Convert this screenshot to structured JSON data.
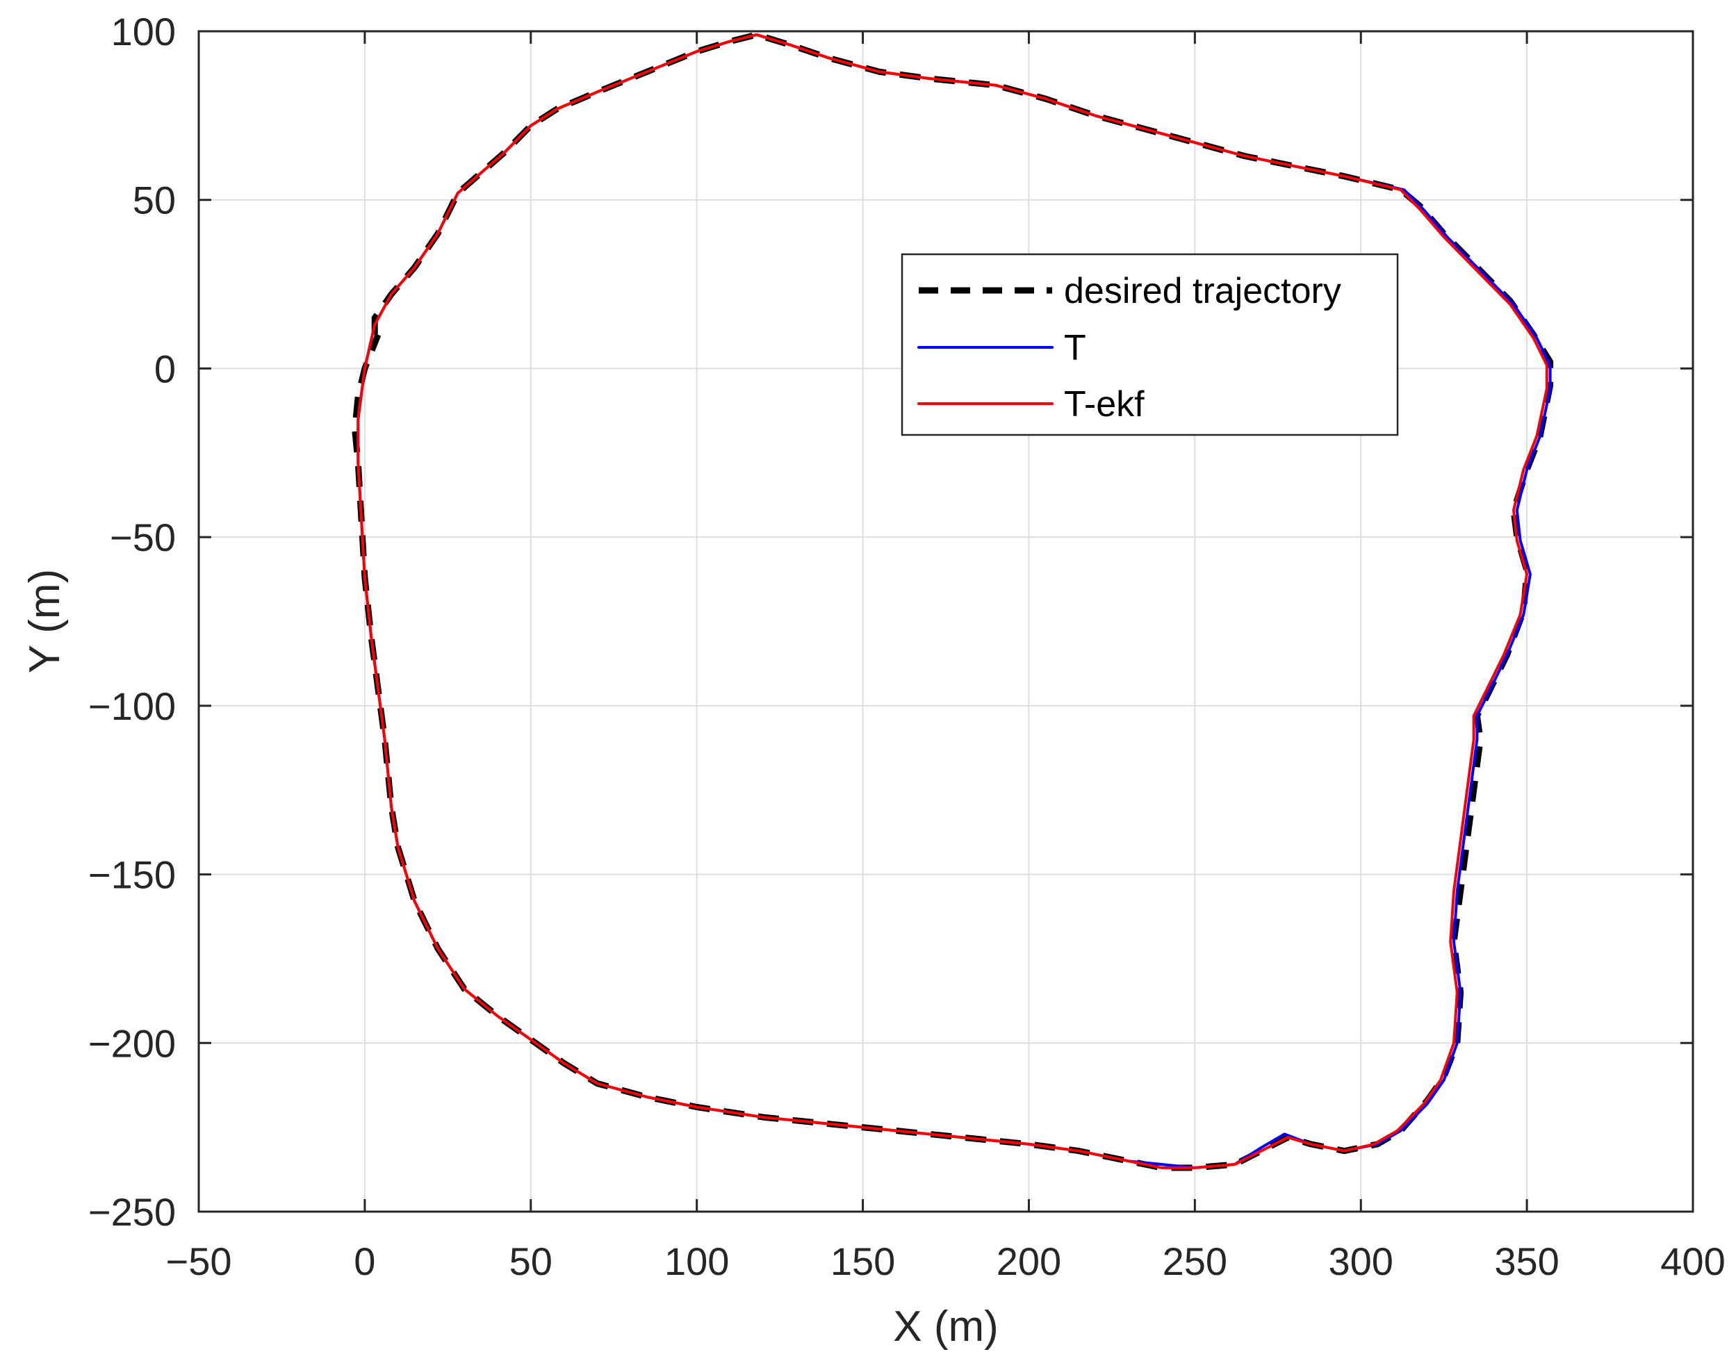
{
  "chart_data": {
    "type": "line",
    "xlabel": "X (m)",
    "ylabel": "Y (m)",
    "xlim": [
      -50,
      400
    ],
    "ylim": [
      -250,
      100
    ],
    "xticks": [
      -50,
      0,
      50,
      100,
      150,
      200,
      250,
      300,
      350,
      400
    ],
    "yticks": [
      -250,
      -200,
      -150,
      -100,
      -50,
      0,
      50,
      100
    ],
    "xtick_labels": [
      "−50",
      "0",
      "50",
      "100",
      "150",
      "200",
      "250",
      "300",
      "350",
      "400"
    ],
    "ytick_labels": [
      "−250",
      "−200",
      "−150",
      "−100",
      "−50",
      "0",
      "50",
      "100"
    ],
    "grid": true,
    "legend_position": "top-right",
    "series": [
      {
        "name": "desired trajectory",
        "color": "#000000",
        "style": "dashed",
        "points": [
          [
            3,
            10
          ],
          [
            3,
            15
          ],
          [
            8,
            22
          ],
          [
            15,
            30
          ],
          [
            22,
            40
          ],
          [
            28,
            52
          ],
          [
            35,
            58
          ],
          [
            42,
            64
          ],
          [
            50,
            72
          ],
          [
            58,
            77
          ],
          [
            70,
            82
          ],
          [
            85,
            88
          ],
          [
            100,
            94
          ],
          [
            110,
            97
          ],
          [
            118,
            99
          ],
          [
            128,
            96
          ],
          [
            140,
            92
          ],
          [
            155,
            88
          ],
          [
            170,
            86
          ],
          [
            190,
            84
          ],
          [
            205,
            80
          ],
          [
            220,
            75
          ],
          [
            235,
            71
          ],
          [
            250,
            67
          ],
          [
            265,
            63
          ],
          [
            280,
            60
          ],
          [
            295,
            57
          ],
          [
            312,
            53
          ],
          [
            318,
            48
          ],
          [
            325,
            40
          ],
          [
            335,
            30
          ],
          [
            345,
            20
          ],
          [
            352,
            10
          ],
          [
            357,
            2
          ],
          [
            357,
            -5
          ],
          [
            354,
            -20
          ],
          [
            350,
            -30
          ],
          [
            346,
            -42
          ],
          [
            347,
            -50
          ],
          [
            350,
            -60
          ],
          [
            349,
            -72
          ],
          [
            344,
            -85
          ],
          [
            339,
            -95
          ],
          [
            335,
            -103
          ],
          [
            336,
            -110
          ],
          [
            334,
            -125
          ],
          [
            332,
            -140
          ],
          [
            330,
            -155
          ],
          [
            328,
            -170
          ],
          [
            330,
            -185
          ],
          [
            329,
            -200
          ],
          [
            325,
            -210
          ],
          [
            320,
            -217
          ],
          [
            312,
            -226
          ],
          [
            305,
            -230
          ],
          [
            295,
            -232
          ],
          [
            285,
            -230
          ],
          [
            278,
            -228
          ],
          [
            270,
            -232
          ],
          [
            262,
            -236
          ],
          [
            250,
            -237
          ],
          [
            240,
            -237
          ],
          [
            230,
            -235
          ],
          [
            215,
            -232
          ],
          [
            200,
            -230
          ],
          [
            180,
            -228
          ],
          [
            160,
            -226
          ],
          [
            140,
            -224
          ],
          [
            120,
            -222
          ],
          [
            100,
            -219
          ],
          [
            85,
            -216
          ],
          [
            70,
            -212
          ],
          [
            60,
            -206
          ],
          [
            50,
            -199
          ],
          [
            40,
            -192
          ],
          [
            30,
            -184
          ],
          [
            22,
            -172
          ],
          [
            15,
            -158
          ],
          [
            10,
            -142
          ],
          [
            8,
            -130
          ],
          [
            6,
            -110
          ],
          [
            4,
            -95
          ],
          [
            2,
            -80
          ],
          [
            0,
            -62
          ],
          [
            -1,
            -45
          ],
          [
            -2,
            -28
          ],
          [
            -3,
            -18
          ],
          [
            -2,
            -8
          ],
          [
            0,
            0
          ],
          [
            2,
            5
          ],
          [
            4,
            10
          ]
        ]
      },
      {
        "name": "T",
        "color": "#0000ff",
        "style": "solid",
        "points": [
          [
            -2,
            -15
          ],
          [
            0,
            0
          ],
          [
            3,
            13
          ],
          [
            8,
            22
          ],
          [
            15,
            30
          ],
          [
            22,
            40
          ],
          [
            28,
            52
          ],
          [
            35,
            58
          ],
          [
            42,
            64
          ],
          [
            50,
            72
          ],
          [
            58,
            77
          ],
          [
            70,
            82
          ],
          [
            85,
            88
          ],
          [
            100,
            94
          ],
          [
            110,
            97
          ],
          [
            118,
            99
          ],
          [
            128,
            96
          ],
          [
            140,
            92
          ],
          [
            155,
            88
          ],
          [
            170,
            86
          ],
          [
            190,
            84
          ],
          [
            205,
            80
          ],
          [
            220,
            75
          ],
          [
            235,
            71
          ],
          [
            250,
            67
          ],
          [
            265,
            63
          ],
          [
            280,
            60
          ],
          [
            295,
            57
          ],
          [
            313,
            53
          ],
          [
            319,
            47
          ],
          [
            326,
            39
          ],
          [
            336,
            29
          ],
          [
            346,
            19
          ],
          [
            353,
            9
          ],
          [
            357,
            1
          ],
          [
            357,
            -6
          ],
          [
            354,
            -20
          ],
          [
            350,
            -30
          ],
          [
            347,
            -42
          ],
          [
            348,
            -51
          ],
          [
            351,
            -61
          ],
          [
            349,
            -73
          ],
          [
            344,
            -85
          ],
          [
            339,
            -95
          ],
          [
            335,
            -103
          ],
          [
            335,
            -110
          ],
          [
            333,
            -125
          ],
          [
            331,
            -140
          ],
          [
            329,
            -155
          ],
          [
            328,
            -170
          ],
          [
            330,
            -185
          ],
          [
            329,
            -200
          ],
          [
            325,
            -211
          ],
          [
            320,
            -218
          ],
          [
            312,
            -226
          ],
          [
            305,
            -230
          ],
          [
            295,
            -232
          ],
          [
            285,
            -230
          ],
          [
            277,
            -227
          ],
          [
            270,
            -231
          ],
          [
            262,
            -236
          ],
          [
            250,
            -237
          ],
          [
            240,
            -236
          ],
          [
            230,
            -235
          ],
          [
            215,
            -232
          ],
          [
            200,
            -230
          ],
          [
            180,
            -228
          ],
          [
            160,
            -226
          ],
          [
            140,
            -224
          ],
          [
            120,
            -222
          ],
          [
            100,
            -219
          ],
          [
            85,
            -216
          ],
          [
            70,
            -212
          ],
          [
            60,
            -206
          ],
          [
            50,
            -199
          ],
          [
            40,
            -192
          ],
          [
            30,
            -184
          ],
          [
            22,
            -172
          ],
          [
            15,
            -158
          ],
          [
            10,
            -142
          ],
          [
            8,
            -130
          ],
          [
            6,
            -110
          ],
          [
            4,
            -95
          ],
          [
            2,
            -80
          ],
          [
            0,
            -62
          ],
          [
            -1,
            -45
          ],
          [
            -2,
            -28
          ],
          [
            -2,
            -15
          ]
        ]
      },
      {
        "name": "T-ekf",
        "color": "#ff0000",
        "style": "solid",
        "points": [
          [
            -2,
            -15
          ],
          [
            0,
            0
          ],
          [
            3,
            13
          ],
          [
            8,
            22
          ],
          [
            15,
            30
          ],
          [
            22,
            40
          ],
          [
            28,
            52
          ],
          [
            35,
            58
          ],
          [
            42,
            64
          ],
          [
            50,
            72
          ],
          [
            58,
            77
          ],
          [
            70,
            82
          ],
          [
            85,
            88
          ],
          [
            100,
            94
          ],
          [
            110,
            97
          ],
          [
            118,
            99
          ],
          [
            128,
            96
          ],
          [
            140,
            92
          ],
          [
            155,
            88
          ],
          [
            170,
            86
          ],
          [
            190,
            84
          ],
          [
            205,
            80
          ],
          [
            220,
            75
          ],
          [
            235,
            71
          ],
          [
            250,
            67
          ],
          [
            265,
            63
          ],
          [
            280,
            60
          ],
          [
            295,
            57
          ],
          [
            312,
            53
          ],
          [
            318,
            47
          ],
          [
            325,
            39
          ],
          [
            335,
            29
          ],
          [
            345,
            19
          ],
          [
            352,
            9
          ],
          [
            356,
            1
          ],
          [
            356,
            -6
          ],
          [
            353,
            -20
          ],
          [
            349,
            -30
          ],
          [
            346,
            -42
          ],
          [
            347,
            -51
          ],
          [
            350,
            -61
          ],
          [
            348,
            -73
          ],
          [
            343,
            -85
          ],
          [
            338,
            -95
          ],
          [
            334,
            -103
          ],
          [
            334,
            -110
          ],
          [
            332,
            -125
          ],
          [
            330,
            -140
          ],
          [
            328,
            -155
          ],
          [
            327,
            -170
          ],
          [
            329,
            -185
          ],
          [
            328,
            -200
          ],
          [
            324,
            -211
          ],
          [
            319,
            -218
          ],
          [
            311,
            -226
          ],
          [
            304,
            -230
          ],
          [
            295,
            -232
          ],
          [
            285,
            -230
          ],
          [
            278,
            -228
          ],
          [
            270,
            -232
          ],
          [
            262,
            -236
          ],
          [
            250,
            -237
          ],
          [
            240,
            -237
          ],
          [
            230,
            -235
          ],
          [
            215,
            -232
          ],
          [
            200,
            -230
          ],
          [
            180,
            -228
          ],
          [
            160,
            -226
          ],
          [
            140,
            -224
          ],
          [
            120,
            -222
          ],
          [
            100,
            -219
          ],
          [
            85,
            -216
          ],
          [
            70,
            -212
          ],
          [
            60,
            -206
          ],
          [
            50,
            -199
          ],
          [
            40,
            -192
          ],
          [
            30,
            -184
          ],
          [
            22,
            -172
          ],
          [
            15,
            -158
          ],
          [
            10,
            -142
          ],
          [
            8,
            -130
          ],
          [
            6,
            -110
          ],
          [
            4,
            -95
          ],
          [
            2,
            -80
          ],
          [
            0,
            -62
          ],
          [
            -1,
            -45
          ],
          [
            -2,
            -28
          ],
          [
            -2,
            -15
          ]
        ]
      }
    ]
  }
}
